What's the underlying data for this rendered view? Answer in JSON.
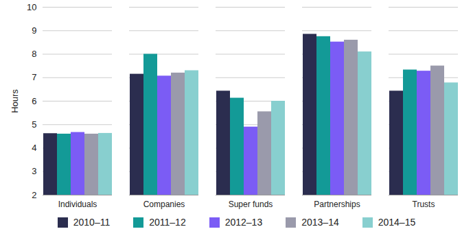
{
  "chart_data": {
    "type": "bar",
    "categories": [
      "Individuals",
      "Companies",
      "Super funds",
      "Partnerships",
      "Trusts"
    ],
    "series": [
      {
        "name": "2010–11",
        "color": "#2b2d4f",
        "values": [
          4.62,
          7.15,
          6.43,
          8.85,
          6.43
        ]
      },
      {
        "name": "2011–12",
        "color": "#139a97",
        "values": [
          4.6,
          8.0,
          6.13,
          8.75,
          7.33
        ]
      },
      {
        "name": "2012–13",
        "color": "#7b5cf5",
        "values": [
          4.67,
          7.07,
          4.9,
          8.52,
          7.28
        ]
      },
      {
        "name": "2013–14",
        "color": "#9a9aab",
        "values": [
          4.6,
          7.2,
          5.55,
          8.6,
          7.5
        ]
      },
      {
        "name": "2014–15",
        "color": "#88cfcf",
        "values": [
          4.63,
          7.3,
          6.0,
          8.1,
          6.78
        ]
      }
    ],
    "y_label": "Hours",
    "ylim": [
      2,
      10
    ],
    "yticks": [
      2,
      3,
      4,
      5,
      6,
      7,
      8,
      9,
      10
    ],
    "grid": true,
    "legend": "bottom"
  }
}
